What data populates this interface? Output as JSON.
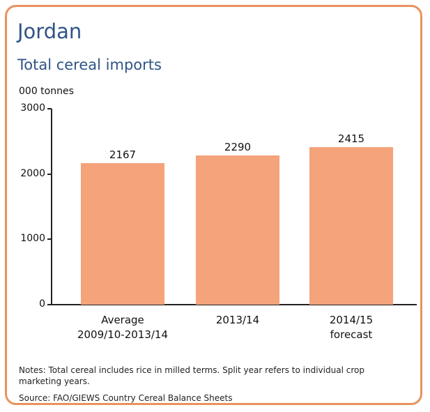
{
  "header": {
    "title": "Jordan",
    "subtitle": "Total cereal imports",
    "unit": "000 tonnes"
  },
  "footer": {
    "notes": "Notes: Total cereal includes rice in milled terms. Split year refers to individual crop marketing years.",
    "source": "Source: FAO/GIEWS Country Cereal Balance Sheets"
  },
  "colors": {
    "bar": "#f4a37a",
    "frame": "#e9915e",
    "title": "#2f5486"
  },
  "chart_data": {
    "type": "bar",
    "title": "Total cereal imports",
    "ylabel": "000 tonnes",
    "xlabel": "",
    "categories": [
      "Average 2009/10-2013/14",
      "2013/14",
      "2014/15 forecast"
    ],
    "category_lines": [
      [
        "Average",
        "2009/10-2013/14"
      ],
      [
        "2013/14"
      ],
      [
        "2014/15",
        "forecast"
      ]
    ],
    "values": [
      2167,
      2290,
      2415
    ],
    "data_labels": [
      "2167",
      "2290",
      "2415"
    ],
    "ylim": [
      0,
      3000
    ],
    "yticks": [
      "0",
      "1000",
      "2000",
      "3000"
    ],
    "grid": false,
    "legend": "none"
  }
}
